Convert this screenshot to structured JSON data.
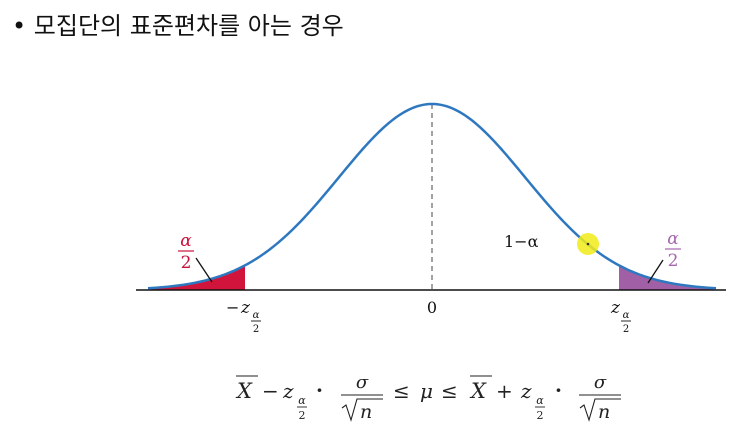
{
  "slide": {
    "bullet": "•",
    "title": "모집단의 표준편차를 아는 경우"
  },
  "figure": {
    "colors": {
      "curve": "#2e78c0",
      "left_tail": "#d0143c",
      "right_tail": "#a15fa6",
      "left_label": "#c8103a",
      "right_label": "#a765b0",
      "axis": "#111111",
      "center_line": "#666666",
      "highlight": "#f1eb18"
    },
    "labels": {
      "alpha": "α",
      "two": "2",
      "one_minus_alpha": "1−α",
      "zero": "0",
      "z": "z",
      "minus": "−"
    }
  },
  "formula": {
    "xbar": "X",
    "minus": "−",
    "plus": "+",
    "z": "z",
    "alpha": "α",
    "two": "2",
    "dot": "·",
    "sigma": "σ",
    "n": "n",
    "leq": "≤",
    "mu": "μ"
  }
}
